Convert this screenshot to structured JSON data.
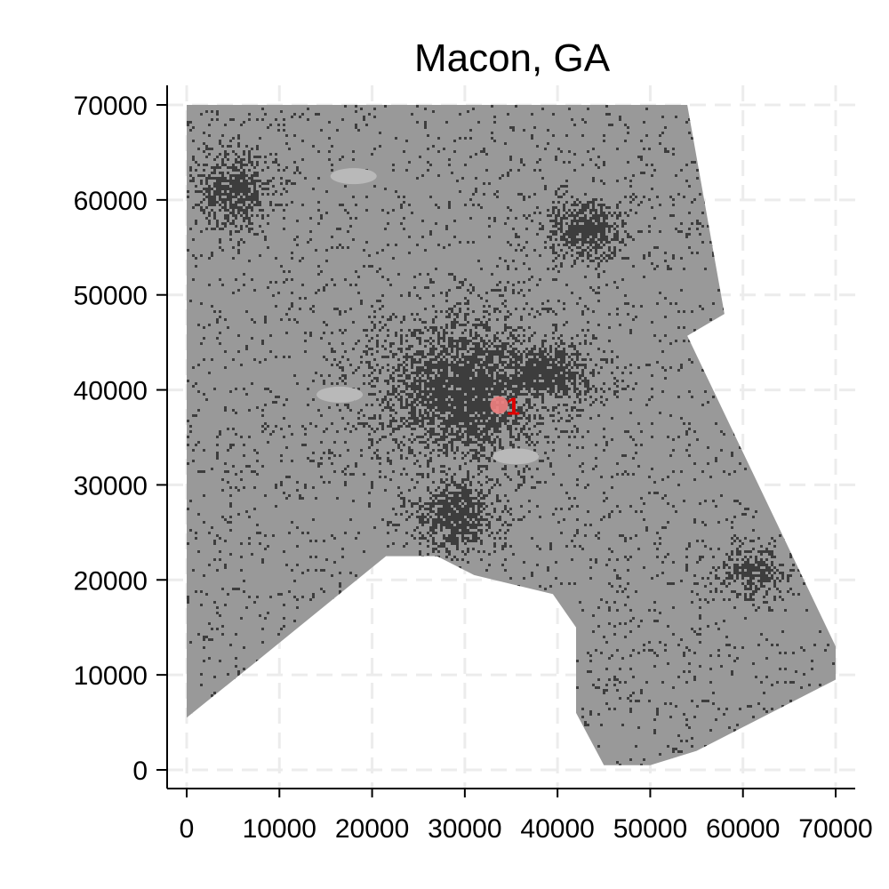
{
  "title": "Macon, GA",
  "axes": {
    "x": {
      "min": 0,
      "max": 70000,
      "ticks": [
        0,
        10000,
        20000,
        30000,
        40000,
        50000,
        60000,
        70000
      ]
    },
    "y": {
      "min": 0,
      "max": 70000,
      "ticks": [
        0,
        10000,
        20000,
        30000,
        40000,
        50000,
        60000,
        70000
      ]
    },
    "grid": "dashed"
  },
  "colors": {
    "county": "#999999",
    "developed": "#3d3d3d",
    "light_patch": "#b9b9b9",
    "marker": "#f08080",
    "marker_label": "#e00000",
    "grid": "#ececec"
  },
  "marker": {
    "label": "1",
    "x": 33700,
    "y": 38400
  },
  "chart_data": {
    "type": "heatmap",
    "title": "Macon, GA",
    "xlabel": "",
    "ylabel": "",
    "xlim": [
      0,
      70000
    ],
    "ylim": [
      0,
      70000
    ],
    "grid": true,
    "boundary": [
      [
        0,
        70000
      ],
      [
        54000,
        70000
      ],
      [
        58000,
        48000
      ],
      [
        54000,
        45700
      ],
      [
        70000,
        13000
      ],
      [
        70000,
        9500
      ],
      [
        55000,
        2000
      ],
      [
        50000,
        500
      ],
      [
        45000,
        500
      ],
      [
        42000,
        6000
      ],
      [
        42000,
        15000
      ],
      [
        39500,
        18500
      ],
      [
        31000,
        20500
      ],
      [
        27000,
        22500
      ],
      [
        21500,
        22500
      ],
      [
        7000,
        11000
      ],
      [
        0,
        5500
      ]
    ],
    "features": [
      {
        "name": "urban core",
        "x": 30000,
        "y": 40000,
        "rx": 7000,
        "ry": 6000
      },
      {
        "name": "south cluster",
        "x": 29000,
        "y": 27000,
        "rx": 3500,
        "ry": 3000
      },
      {
        "name": "northwest cluster",
        "x": 5000,
        "y": 61000,
        "rx": 3000,
        "ry": 3000
      },
      {
        "name": "northeast cluster",
        "x": 43000,
        "y": 57000,
        "rx": 3000,
        "ry": 2500
      },
      {
        "name": "east arm",
        "x": 38000,
        "y": 42000,
        "rx": 5000,
        "ry": 2500
      },
      {
        "name": "southeast cluster",
        "x": 61000,
        "y": 21000,
        "rx": 2500,
        "ry": 1800
      }
    ],
    "light_patches": [
      {
        "x": 18000,
        "y": 62500
      },
      {
        "x": 35500,
        "y": 33000
      },
      {
        "x": 16500,
        "y": 39500
      }
    ],
    "marker": {
      "label": "1",
      "x": 33700,
      "y": 38400
    }
  }
}
